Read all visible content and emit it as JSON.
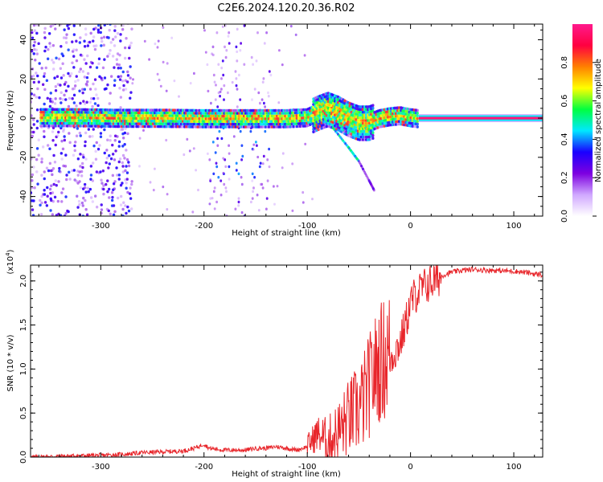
{
  "title": "C2E6.2024.120.20.36.R02",
  "chart_data": [
    {
      "type": "heatmap",
      "xlabel": "Height of straight line (km)",
      "ylabel": "Frequency (Hz)",
      "xlim": [
        -368,
        128
      ],
      "ylim": [
        -50,
        48
      ],
      "x_ticks": [
        -300,
        -200,
        -100,
        0,
        100
      ],
      "x_tick_labels": [
        "-300",
        "-200",
        "-100",
        "0",
        "100"
      ],
      "y_ticks": [
        -40,
        -20,
        0,
        20,
        40
      ],
      "y_tick_labels": [
        "-40",
        "-20",
        "0",
        "20",
        "40"
      ],
      "colorbar": {
        "label": "Normalized spectral amplitude",
        "range": [
          0,
          1
        ],
        "ticks": [
          0.0,
          0.2,
          0.4,
          0.6,
          0.8
        ],
        "tick_labels": [
          "0.0",
          "0.2",
          "0.4",
          "0.6",
          "0.8"
        ],
        "colors": [
          "#ffffff",
          "#d0a8ff",
          "#7d00e0",
          "#1a00ff",
          "#00e8ff",
          "#00ff40",
          "#ffff00",
          "#ff8000",
          "#ff0040",
          "#ff1a8c"
        ]
      },
      "carrier_line": {
        "frequency": 0,
        "x_start": 8,
        "x_end": 128,
        "amplitude": 0.97
      },
      "carrier_band": {
        "x": [
          -358,
          -320,
          -280,
          -240,
          -200,
          -160,
          -120,
          -100,
          -90,
          -80,
          -70,
          -60,
          -50,
          -40,
          -30,
          -20,
          -10,
          0,
          8
        ],
        "freq": [
          0.5,
          0.5,
          0.2,
          0.2,
          0,
          0,
          0,
          0.5,
          3,
          5,
          3,
          0,
          -2,
          -2,
          0,
          1,
          1.5,
          0.5,
          0
        ]
      },
      "diffuse_region": {
        "x_range": [
          -368,
          -270
        ],
        "freq_range": [
          -50,
          48
        ]
      },
      "streak_columns": [
        -190,
        -180,
        -165,
        -150,
        -140
      ],
      "descending_branch": {
        "x": [
          -75,
          -60,
          -50,
          -40,
          -35
        ],
        "freq": [
          -5,
          -15,
          -22,
          -32,
          -37
        ]
      },
      "grid": false
    },
    {
      "type": "line",
      "xlabel": "Height of straight line (km)",
      "ylabel": "SNR (10 * v/v)",
      "y_multiplier_label": "(x10",
      "y_multiplier_exp": "4",
      "y_multiplier_close": ")",
      "xlim": [
        -368,
        128
      ],
      "ylim": [
        0,
        2.18
      ],
      "x_ticks": [
        -300,
        -200,
        -100,
        0,
        100
      ],
      "x_tick_labels": [
        "-300",
        "-200",
        "-100",
        "0",
        "100"
      ],
      "y_ticks": [
        0,
        0.5,
        1.0,
        1.5,
        2.0
      ],
      "y_tick_labels": [
        "0.0",
        "0.5",
        "1.0",
        "1.5",
        "2.0"
      ],
      "color": "#e8262b",
      "series": [
        {
          "x": [
            -368,
            -340,
            -300,
            -280,
            -260,
            -240,
            -220,
            -210,
            -205,
            -200,
            -195,
            -180,
            -160,
            -150,
            -140,
            -130,
            -120,
            -110,
            -100,
            -95,
            -90,
            -85,
            -80,
            -75,
            -70,
            -65,
            -60,
            -55,
            -50,
            -45,
            -40,
            -35,
            -30,
            -25,
            -20,
            -15,
            -10,
            -5,
            0,
            5,
            10,
            15,
            20,
            25,
            30,
            40,
            50,
            60,
            80,
            100,
            110,
            120,
            128
          ],
          "y": [
            0.0,
            0.01,
            0.02,
            0.03,
            0.05,
            0.06,
            0.07,
            0.1,
            0.12,
            0.15,
            0.1,
            0.08,
            0.08,
            0.1,
            0.1,
            0.12,
            0.1,
            0.08,
            0.12,
            0.18,
            0.25,
            0.2,
            0.15,
            0.2,
            0.25,
            0.32,
            0.4,
            0.45,
            0.5,
            0.6,
            0.75,
            0.9,
            1.0,
            1.05,
            1.1,
            1.2,
            1.3,
            1.5,
            1.75,
            1.85,
            1.9,
            1.95,
            1.98,
            2.02,
            2.06,
            2.1,
            2.12,
            2.13,
            2.12,
            2.11,
            2.1,
            2.08,
            2.07
          ]
        }
      ],
      "grid": false
    }
  ]
}
